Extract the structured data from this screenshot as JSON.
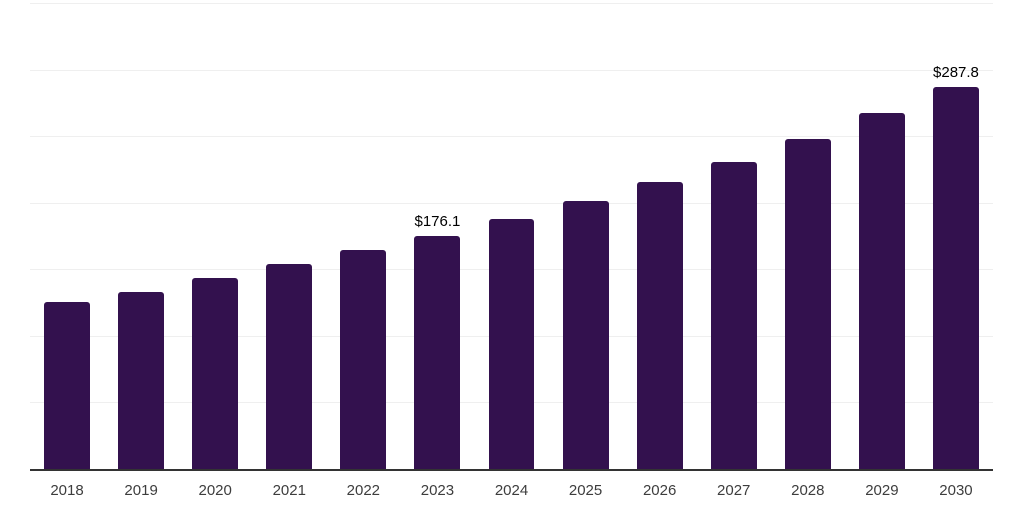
{
  "chart_data": {
    "type": "bar",
    "title": "",
    "xlabel": "",
    "ylabel": "",
    "categories": [
      "2018",
      "2019",
      "2020",
      "2021",
      "2022",
      "2023",
      "2024",
      "2025",
      "2026",
      "2027",
      "2028",
      "2029",
      "2030"
    ],
    "values": [
      126.4,
      133.9,
      144.3,
      154.7,
      165.2,
      176.1,
      188.4,
      201.9,
      216.1,
      231.7,
      248.9,
      268.4,
      287.8
    ],
    "data_labels": [
      {
        "category": "2023",
        "text": "$176.1"
      },
      {
        "category": "2030",
        "text": "$287.8"
      }
    ],
    "ylim": [
      0,
      350
    ],
    "gridline_step": 50,
    "grid": true,
    "legend_position": "none",
    "colors": {
      "bar": "#33114e",
      "axis": "#333333",
      "gridline": "#efefef",
      "data_label_text": "#000000",
      "tick_text": "#3d3d3d",
      "background": "#ffffff"
    }
  }
}
